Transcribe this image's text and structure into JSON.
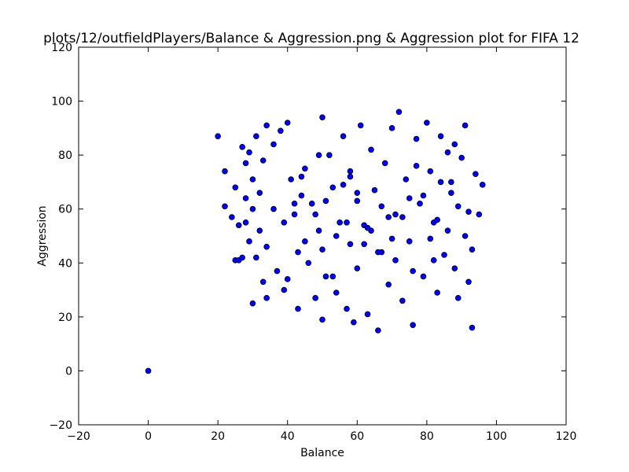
{
  "chart_data": {
    "type": "scatter",
    "title": "plots/12/outfieldPlayers/Balance & Aggression.png & Aggression plot for FIFA 12",
    "xlabel": "Balance",
    "ylabel": "Aggression",
    "xlim": [
      -20,
      120
    ],
    "ylim": [
      -20,
      120
    ],
    "xticks": [
      -20,
      0,
      20,
      40,
      60,
      80,
      100,
      120
    ],
    "yticks": [
      -20,
      0,
      20,
      40,
      60,
      80,
      100,
      120
    ],
    "grid": false,
    "marker_color": "#0000ff",
    "marker_edge_color": "#000000",
    "series": [
      {
        "x": [
          0,
          20,
          22,
          22,
          24,
          25,
          25,
          26,
          26,
          27,
          27,
          28,
          28,
          28,
          29,
          29,
          30,
          30,
          30,
          31,
          31,
          32,
          32,
          33,
          33,
          34,
          34,
          34,
          36,
          37,
          38,
          39,
          40,
          40,
          41,
          42,
          43,
          43,
          44,
          45,
          46,
          47,
          48,
          49,
          50,
          50,
          51,
          52,
          53,
          54,
          55,
          56,
          57,
          58,
          58,
          59,
          60,
          60,
          61,
          62,
          63,
          64,
          65,
          66,
          67,
          68,
          69,
          70,
          71,
          72,
          73,
          74,
          75,
          76,
          77,
          78,
          79,
          80,
          81,
          82,
          83,
          84,
          85,
          86,
          87,
          88,
          89,
          90,
          91,
          92,
          93,
          94,
          95,
          96,
          93,
          91,
          89,
          88,
          86,
          84,
          82,
          79,
          76,
          73,
          70,
          67,
          66,
          64,
          62,
          60,
          57,
          54,
          51,
          48,
          45,
          42,
          39,
          36,
          44,
          50,
          56,
          63,
          69,
          75,
          81,
          87,
          92,
          49,
          53,
          58,
          71,
          77,
          83
        ],
        "y": [
          0,
          87,
          74,
          61,
          57,
          68,
          41,
          54,
          41,
          83,
          42,
          77,
          55,
          64,
          81,
          48,
          71,
          60,
          25,
          87,
          42,
          66,
          52,
          78,
          33,
          91,
          46,
          27,
          84,
          37,
          89,
          30,
          92,
          34,
          71,
          58,
          44,
          23,
          65,
          75,
          40,
          62,
          27,
          52,
          94,
          19,
          35,
          80,
          68,
          29,
          55,
          87,
          23,
          72,
          47,
          18,
          63,
          38,
          91,
          54,
          21,
          82,
          67,
          15,
          44,
          77,
          32,
          90,
          58,
          96,
          26,
          71,
          48,
          17,
          86,
          62,
          35,
          92,
          74,
          55,
          29,
          87,
          43,
          81,
          66,
          38,
          61,
          79,
          50,
          33,
          16,
          73,
          58,
          69,
          45,
          91,
          27,
          84,
          52,
          70,
          41,
          65,
          37,
          57,
          49,
          61,
          44,
          52,
          47,
          66,
          55,
          50,
          63,
          58,
          48,
          62,
          55,
          60,
          72,
          45,
          69,
          53,
          57,
          64,
          49,
          70,
          59,
          80,
          35,
          74,
          41,
          76,
          56
        ]
      }
    ]
  }
}
